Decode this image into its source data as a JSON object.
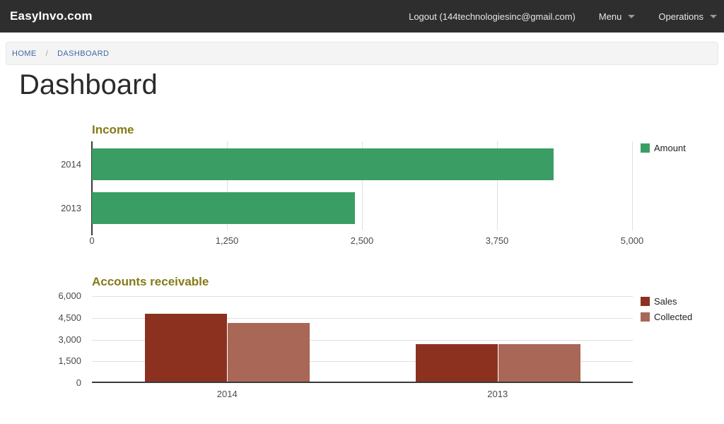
{
  "header": {
    "brand": "EasyInvo.com",
    "logout_label": "Logout (144technologiesinc@gmail.com)",
    "menu_label": "Menu",
    "operations_label": "Operations"
  },
  "breadcrumb": {
    "home": "HOME",
    "separator": "/",
    "current": "DASHBOARD"
  },
  "page": {
    "title": "Dashboard"
  },
  "colors": {
    "header_bg": "#2e2e2e",
    "breadcrumb_link": "#3b68a5",
    "chart_title": "#847a16",
    "income_bar": "#3a9e64",
    "sales_bar": "#8c311f",
    "collected_bar": "#a96757"
  },
  "chart_data": [
    {
      "id": "income",
      "type": "bar",
      "orientation": "horizontal",
      "title": "Income",
      "categories": [
        "2014",
        "2013"
      ],
      "series": [
        {
          "name": "Amount",
          "color": "#3a9e64",
          "values": [
            4275,
            2435
          ]
        }
      ],
      "xlim": [
        0,
        5000
      ],
      "x_ticks": [
        0,
        1250,
        2500,
        3750,
        5000
      ],
      "x_tick_labels": [
        "0",
        "1,250",
        "2,500",
        "3,750",
        "5,000"
      ],
      "grid": true,
      "legend_position": "right-top"
    },
    {
      "id": "accounts_receivable",
      "type": "bar",
      "orientation": "vertical",
      "title": "Accounts receivable",
      "categories": [
        "2014",
        "2013"
      ],
      "series": [
        {
          "name": "Sales",
          "color": "#8c311f",
          "values": [
            4700,
            2600
          ]
        },
        {
          "name": "Collected",
          "color": "#a96757",
          "values": [
            4050,
            2600
          ]
        }
      ],
      "ylim": [
        0,
        6000
      ],
      "y_ticks": [
        0,
        1500,
        3000,
        4500,
        6000
      ],
      "y_tick_labels": [
        "0",
        "1,500",
        "3,000",
        "4,500",
        "6,000"
      ],
      "grid": true,
      "legend_position": "right-top"
    }
  ]
}
